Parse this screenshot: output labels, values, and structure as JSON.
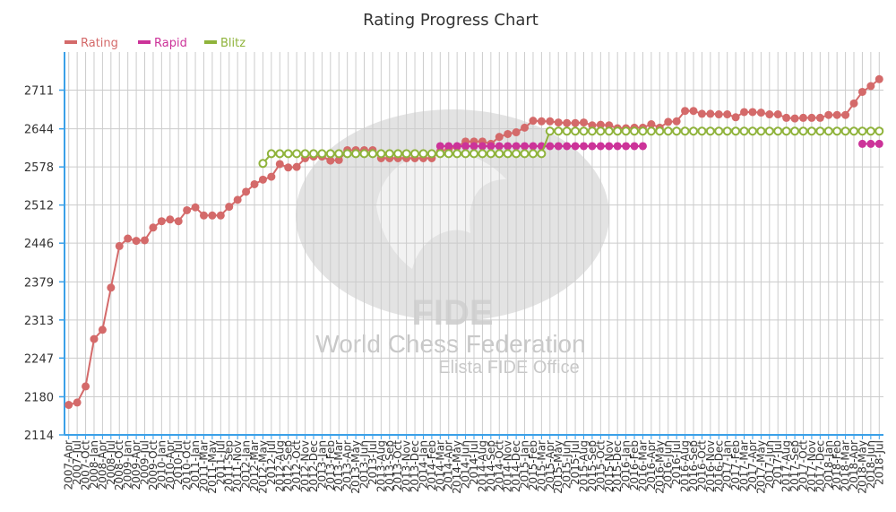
{
  "chart_data": {
    "type": "line",
    "title": "Rating Progress Chart",
    "legend_position": "top-left",
    "grid": true,
    "ylim": [
      2114,
      2777
    ],
    "yticks": [
      2114,
      2180,
      2247,
      2313,
      2379,
      2446,
      2512,
      2578,
      2644,
      2711
    ],
    "categories": [
      "2007-Apr",
      "2007-Jul",
      "2007-Oct",
      "2008-Jan",
      "2008-Apr",
      "2008-Jul",
      "2008-Oct",
      "2009-Jan",
      "2009-Apr",
      "2009-Jul",
      "2009-Oct",
      "2010-Jan",
      "2010-Apr",
      "2010-Jul",
      "2010-Oct",
      "2011-Jan",
      "2011-Mar",
      "2011-May",
      "2011-Jul",
      "2011-Sep",
      "2011-Nov",
      "2012-Jan",
      "2012-Mar",
      "2012-May",
      "2012-Jul",
      "2012-Aug",
      "2012-Sep",
      "2012-Oct",
      "2012-Nov",
      "2012-Dec",
      "2013-Jan",
      "2013-Feb",
      "2013-Mar",
      "2013-Apr",
      "2013-May",
      "2013-Jun",
      "2013-Jul",
      "2013-Aug",
      "2013-Sep",
      "2013-Oct",
      "2013-Nov",
      "2013-Dec",
      "2014-Jan",
      "2014-Feb",
      "2014-Mar",
      "2014-Apr",
      "2014-May",
      "2014-Jun",
      "2014-Jul",
      "2014-Aug",
      "2014-Sep",
      "2014-Oct",
      "2014-Nov",
      "2014-Dec",
      "2015-Jan",
      "2015-Feb",
      "2015-Mar",
      "2015-Apr",
      "2015-May",
      "2015-Jun",
      "2015-Jul",
      "2015-Aug",
      "2015-Sep",
      "2015-Oct",
      "2015-Nov",
      "2015-Dec",
      "2016-Jan",
      "2016-Feb",
      "2016-Mar",
      "2016-Apr",
      "2016-May",
      "2016-Jun",
      "2016-Jul",
      "2016-Aug",
      "2016-Sep",
      "2016-Oct",
      "2016-Nov",
      "2016-Dec",
      "2017-Jan",
      "2017-Feb",
      "2017-Mar",
      "2017-Apr",
      "2017-May",
      "2017-Jun",
      "2017-Jul",
      "2017-Aug",
      "2017-Sep",
      "2017-Oct",
      "2017-Nov",
      "2017-Dec",
      "2018-Jan",
      "2018-Feb",
      "2018-Mar",
      "2018-Apr",
      "2018-May",
      "2018-Jun",
      "2018-Jul"
    ],
    "series": [
      {
        "name": "Rating",
        "color": "#d46a6a",
        "marker": "filled",
        "values": [
          2166,
          2170,
          2198,
          2280,
          2296,
          2369,
          2441,
          2454,
          2450,
          2451,
          2473,
          2484,
          2487,
          2484,
          2503,
          2508,
          2494,
          2494,
          2494,
          2509,
          2521,
          2535,
          2548,
          2556,
          2561,
          2583,
          2577,
          2578,
          2593,
          2596,
          2596,
          2589,
          2590,
          2607,
          2607,
          2607,
          2607,
          2593,
          2593,
          2593,
          2593,
          2593,
          2593,
          2593,
          2605,
          2609,
          2613,
          2622,
          2622,
          2622,
          2618,
          2630,
          2635,
          2638,
          2646,
          2658,
          2657,
          2657,
          2655,
          2654,
          2654,
          2655,
          2650,
          2651,
          2650,
          2645,
          2645,
          2646,
          2646,
          2652,
          2646,
          2656,
          2657,
          2675,
          2675,
          2670,
          2670,
          2669,
          2669,
          2664,
          2673,
          2673,
          2672,
          2669,
          2669,
          2663,
          2662,
          2663,
          2663,
          2663,
          2668,
          2668,
          2668,
          2688,
          2708,
          2718,
          2730
        ]
      },
      {
        "name": "Rapid",
        "color": "#cc3399",
        "marker": "filled",
        "values": [
          null,
          null,
          null,
          null,
          null,
          null,
          null,
          null,
          null,
          null,
          null,
          null,
          null,
          null,
          null,
          null,
          null,
          null,
          null,
          null,
          null,
          null,
          null,
          null,
          null,
          null,
          null,
          null,
          null,
          null,
          null,
          null,
          null,
          null,
          null,
          null,
          null,
          null,
          null,
          null,
          null,
          null,
          null,
          null,
          2614,
          2614,
          2614,
          2614,
          2614,
          2614,
          2614,
          2614,
          2614,
          2614,
          2614,
          2614,
          2614,
          2614,
          2614,
          2614,
          2614,
          2614,
          2614,
          2614,
          2614,
          2614,
          2614,
          2614,
          2614,
          null,
          null,
          null,
          null,
          null,
          null,
          null,
          null,
          null,
          null,
          null,
          null,
          null,
          null,
          null,
          null,
          null,
          null,
          null,
          null,
          null,
          null,
          null,
          null,
          null,
          2618,
          2618,
          2618
        ]
      },
      {
        "name": "Blitz",
        "color": "#8fb33b",
        "marker": "hollow",
        "values": [
          null,
          null,
          null,
          null,
          null,
          null,
          null,
          null,
          null,
          null,
          null,
          null,
          null,
          null,
          null,
          null,
          null,
          null,
          null,
          null,
          null,
          null,
          null,
          2584,
          2601,
          2601,
          2601,
          2601,
          2601,
          2601,
          2601,
          2601,
          2601,
          2601,
          2601,
          2601,
          2601,
          2601,
          2601,
          2601,
          2601,
          2601,
          2601,
          2601,
          2601,
          2601,
          2601,
          2601,
          2601,
          2601,
          2601,
          2601,
          2601,
          2601,
          2601,
          2601,
          2601,
          2640,
          2640,
          2640,
          2640,
          2640,
          2640,
          2640,
          2640,
          2640,
          2640,
          2640,
          2640,
          2640,
          2640,
          2640,
          2640,
          2640,
          2640,
          2640,
          2640,
          2640,
          2640,
          2640,
          2640,
          2640,
          2640,
          2640,
          2640,
          2640,
          2640,
          2640,
          2640,
          2640,
          2640,
          2640,
          2640,
          2640,
          2640,
          2640,
          2640
        ]
      }
    ]
  },
  "watermark": {
    "logo_text": "FIDE",
    "line1": "World Chess Federation",
    "line2": "Elista FIDE Office"
  }
}
